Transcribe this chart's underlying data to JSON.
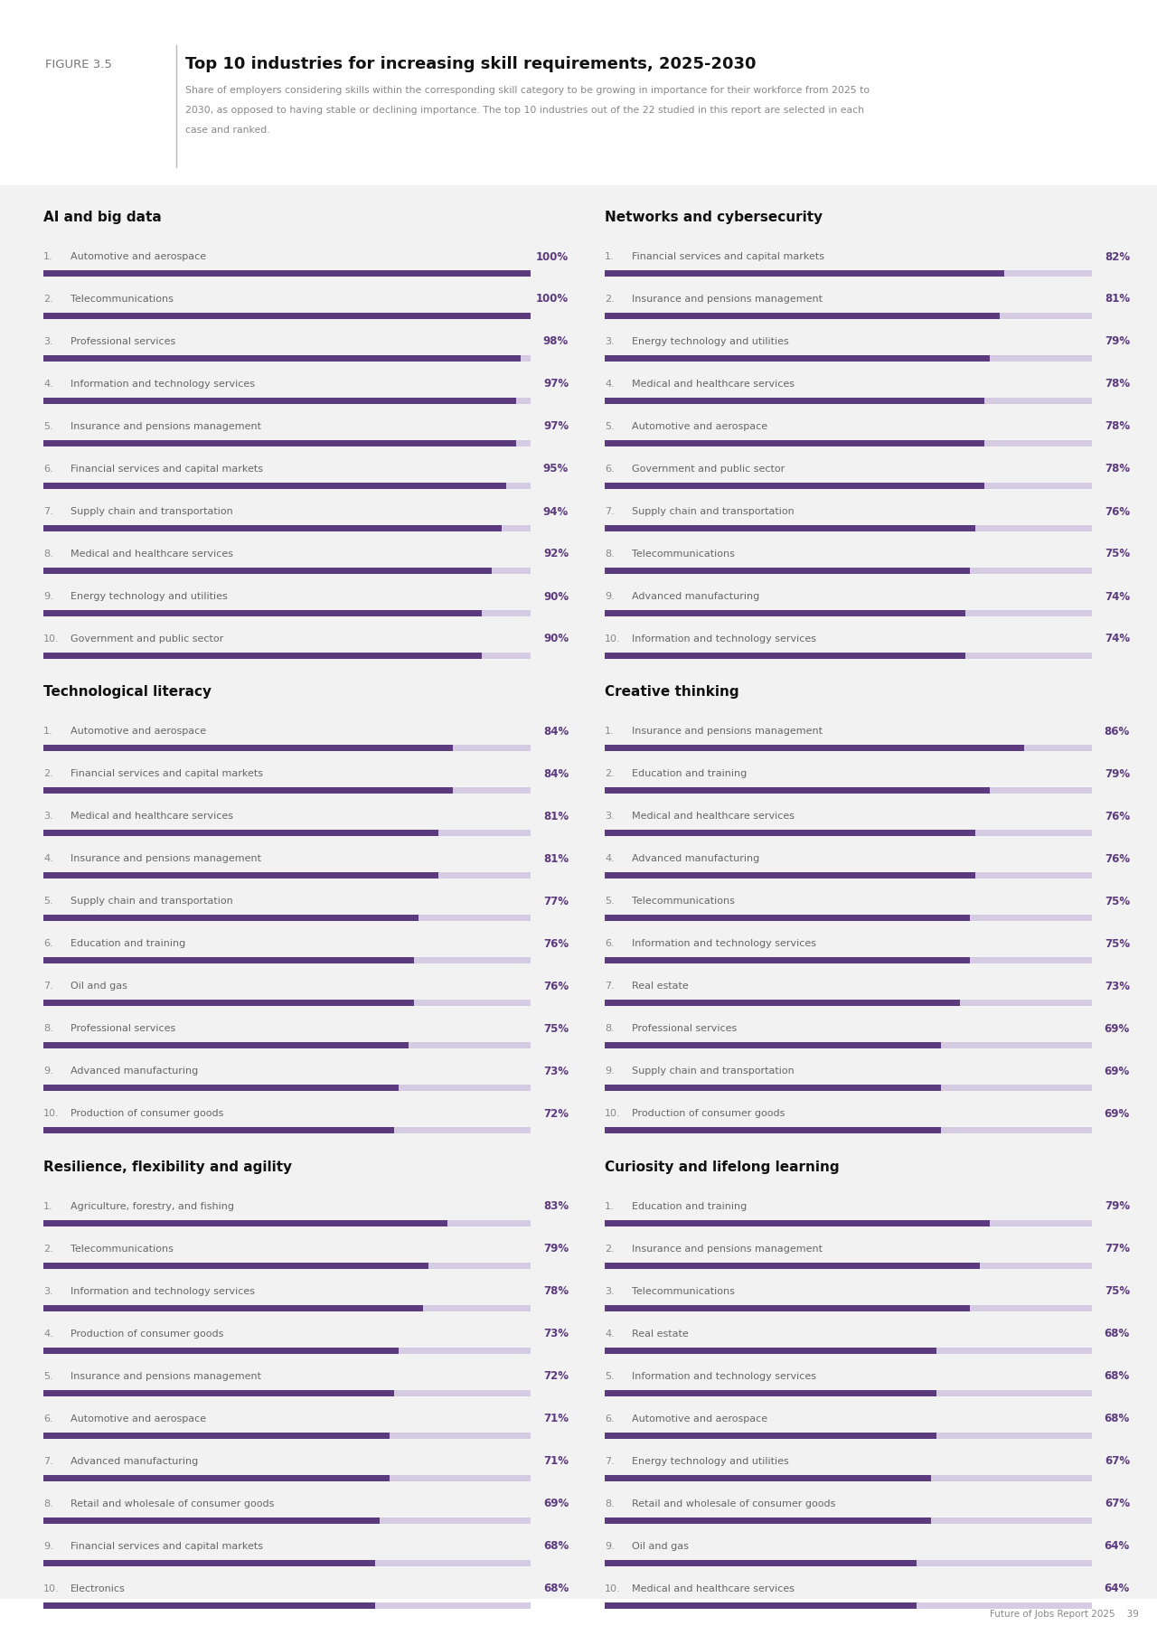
{
  "figure_label": "FIGURE 3.5",
  "title": "Top 10 industries for increasing skill requirements, 2025-2030",
  "subtitle_line1": "Share of employers considering skills within the corresponding skill category to be growing in importance for their workforce from 2025 to",
  "subtitle_line2": "2030, as opposed to having stable or declining importance. The top 10 industries out of the 22 studied in this report are selected in each",
  "subtitle_line3": "case and ranked.",
  "footer": "Future of Jobs Report 2025    39",
  "bar_color_dark": "#5b3a7e",
  "bar_color_light": "#d5cce4",
  "sections": [
    {
      "title": "AI and big data",
      "items": [
        {
          "rank": "1.",
          "label": "Automotive and aerospace",
          "value": 100
        },
        {
          "rank": "2.",
          "label": "Telecommunications",
          "value": 100
        },
        {
          "rank": "3.",
          "label": "Professional services",
          "value": 98
        },
        {
          "rank": "4.",
          "label": "Information and technology services",
          "value": 97
        },
        {
          "rank": "5.",
          "label": "Insurance and pensions management",
          "value": 97
        },
        {
          "rank": "6.",
          "label": "Financial services and capital markets",
          "value": 95
        },
        {
          "rank": "7.",
          "label": "Supply chain and transportation",
          "value": 94
        },
        {
          "rank": "8.",
          "label": "Medical and healthcare services",
          "value": 92
        },
        {
          "rank": "9.",
          "label": "Energy technology and utilities",
          "value": 90
        },
        {
          "rank": "10.",
          "label": "Government and public sector",
          "value": 90
        }
      ]
    },
    {
      "title": "Networks and cybersecurity",
      "items": [
        {
          "rank": "1.",
          "label": "Financial services and capital markets",
          "value": 82
        },
        {
          "rank": "2.",
          "label": "Insurance and pensions management",
          "value": 81
        },
        {
          "rank": "3.",
          "label": "Energy technology and utilities",
          "value": 79
        },
        {
          "rank": "4.",
          "label": "Medical and healthcare services",
          "value": 78
        },
        {
          "rank": "5.",
          "label": "Automotive and aerospace",
          "value": 78
        },
        {
          "rank": "6.",
          "label": "Government and public sector",
          "value": 78
        },
        {
          "rank": "7.",
          "label": "Supply chain and transportation",
          "value": 76
        },
        {
          "rank": "8.",
          "label": "Telecommunications",
          "value": 75
        },
        {
          "rank": "9.",
          "label": "Advanced manufacturing",
          "value": 74
        },
        {
          "rank": "10.",
          "label": "Information and technology services",
          "value": 74
        }
      ]
    },
    {
      "title": "Technological literacy",
      "items": [
        {
          "rank": "1.",
          "label": "Automotive and aerospace",
          "value": 84
        },
        {
          "rank": "2.",
          "label": "Financial services and capital markets",
          "value": 84
        },
        {
          "rank": "3.",
          "label": "Medical and healthcare services",
          "value": 81
        },
        {
          "rank": "4.",
          "label": "Insurance and pensions management",
          "value": 81
        },
        {
          "rank": "5.",
          "label": "Supply chain and transportation",
          "value": 77
        },
        {
          "rank": "6.",
          "label": "Education and training",
          "value": 76
        },
        {
          "rank": "7.",
          "label": "Oil and gas",
          "value": 76
        },
        {
          "rank": "8.",
          "label": "Professional services",
          "value": 75
        },
        {
          "rank": "9.",
          "label": "Advanced manufacturing",
          "value": 73
        },
        {
          "rank": "10.",
          "label": "Production of consumer goods",
          "value": 72
        }
      ]
    },
    {
      "title": "Creative thinking",
      "items": [
        {
          "rank": "1.",
          "label": "Insurance and pensions management",
          "value": 86
        },
        {
          "rank": "2.",
          "label": "Education and training",
          "value": 79
        },
        {
          "rank": "3.",
          "label": "Medical and healthcare services",
          "value": 76
        },
        {
          "rank": "4.",
          "label": "Advanced manufacturing",
          "value": 76
        },
        {
          "rank": "5.",
          "label": "Telecommunications",
          "value": 75
        },
        {
          "rank": "6.",
          "label": "Information and technology services",
          "value": 75
        },
        {
          "rank": "7.",
          "label": "Real estate",
          "value": 73
        },
        {
          "rank": "8.",
          "label": "Professional services",
          "value": 69
        },
        {
          "rank": "9.",
          "label": "Supply chain and transportation",
          "value": 69
        },
        {
          "rank": "10.",
          "label": "Production of consumer goods",
          "value": 69
        }
      ]
    },
    {
      "title": "Resilience, flexibility and agility",
      "items": [
        {
          "rank": "1.",
          "label": "Agriculture, forestry, and fishing",
          "value": 83
        },
        {
          "rank": "2.",
          "label": "Telecommunications",
          "value": 79
        },
        {
          "rank": "3.",
          "label": "Information and technology services",
          "value": 78
        },
        {
          "rank": "4.",
          "label": "Production of consumer goods",
          "value": 73
        },
        {
          "rank": "5.",
          "label": "Insurance and pensions management",
          "value": 72
        },
        {
          "rank": "6.",
          "label": "Automotive and aerospace",
          "value": 71
        },
        {
          "rank": "7.",
          "label": "Advanced manufacturing",
          "value": 71
        },
        {
          "rank": "8.",
          "label": "Retail and wholesale of consumer goods",
          "value": 69
        },
        {
          "rank": "9.",
          "label": "Financial services and capital markets",
          "value": 68
        },
        {
          "rank": "10.",
          "label": "Electronics",
          "value": 68
        }
      ]
    },
    {
      "title": "Curiosity and lifelong learning",
      "items": [
        {
          "rank": "1.",
          "label": "Education and training",
          "value": 79
        },
        {
          "rank": "2.",
          "label": "Insurance and pensions management",
          "value": 77
        },
        {
          "rank": "3.",
          "label": "Telecommunications",
          "value": 75
        },
        {
          "rank": "4.",
          "label": "Real estate",
          "value": 68
        },
        {
          "rank": "5.",
          "label": "Information and technology services",
          "value": 68
        },
        {
          "rank": "6.",
          "label": "Automotive and aerospace",
          "value": 68
        },
        {
          "rank": "7.",
          "label": "Energy technology and utilities",
          "value": 67
        },
        {
          "rank": "8.",
          "label": "Retail and wholesale of consumer goods",
          "value": 67
        },
        {
          "rank": "9.",
          "label": "Oil and gas",
          "value": 64
        },
        {
          "rank": "10.",
          "label": "Medical and healthcare services",
          "value": 64
        }
      ]
    }
  ]
}
